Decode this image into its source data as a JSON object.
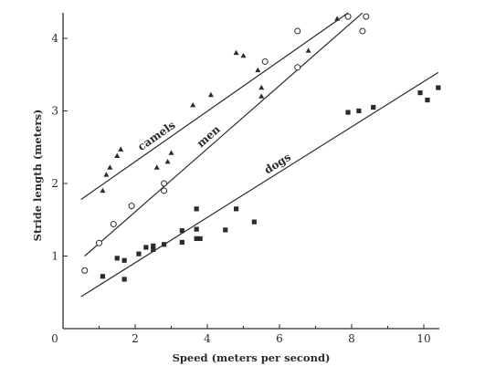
{
  "chart_data": {
    "type": "scatter",
    "xlabel": "Speed (meters per second)",
    "ylabel": "Stride length (meters)",
    "xlim": [
      0,
      10.5
    ],
    "ylim": [
      0,
      4.35
    ],
    "xticks": [
      "0",
      "2",
      "4",
      "6",
      "8",
      "10"
    ],
    "yticks": [
      "1",
      "2",
      "3",
      "4"
    ],
    "grid": false,
    "series": [
      {
        "name": "camels",
        "marker": "triangle",
        "color": "#2b2b2b",
        "points": [
          [
            1.1,
            1.9
          ],
          [
            1.2,
            2.12
          ],
          [
            1.3,
            2.22
          ],
          [
            1.5,
            2.38
          ],
          [
            1.6,
            2.47
          ],
          [
            2.6,
            2.22
          ],
          [
            2.9,
            2.3
          ],
          [
            3.0,
            2.42
          ],
          [
            3.6,
            3.08
          ],
          [
            4.1,
            3.22
          ],
          [
            4.8,
            3.8
          ],
          [
            5.0,
            3.76
          ],
          [
            5.4,
            3.56
          ],
          [
            5.5,
            3.2
          ],
          [
            5.5,
            3.32
          ],
          [
            6.8,
            3.83
          ],
          [
            7.6,
            4.27
          ]
        ],
        "fit": [
          [
            0.5,
            1.78
          ],
          [
            7.9,
            4.35
          ]
        ]
      },
      {
        "name": "men",
        "marker": "circle-open",
        "color": "#2b2b2b",
        "points": [
          [
            0.6,
            0.8
          ],
          [
            1.0,
            1.18
          ],
          [
            1.4,
            1.44
          ],
          [
            1.9,
            1.69
          ],
          [
            2.8,
            1.9
          ],
          [
            2.8,
            2.0
          ],
          [
            5.6,
            3.68
          ],
          [
            6.5,
            3.6
          ],
          [
            6.5,
            4.1
          ],
          [
            7.9,
            4.3
          ],
          [
            8.3,
            4.1
          ],
          [
            8.4,
            4.3
          ]
        ],
        "fit": [
          [
            0.6,
            1.0
          ],
          [
            8.3,
            4.35
          ]
        ]
      },
      {
        "name": "dogs",
        "marker": "square",
        "color": "#2b2b2b",
        "points": [
          [
            1.1,
            0.72
          ],
          [
            1.5,
            0.97
          ],
          [
            1.7,
            0.94
          ],
          [
            1.7,
            0.68
          ],
          [
            2.1,
            1.03
          ],
          [
            2.3,
            1.12
          ],
          [
            2.5,
            1.14
          ],
          [
            2.5,
            1.09
          ],
          [
            2.8,
            1.16
          ],
          [
            3.3,
            1.19
          ],
          [
            3.3,
            1.35
          ],
          [
            3.7,
            1.24
          ],
          [
            3.7,
            1.37
          ],
          [
            3.7,
            1.65
          ],
          [
            3.8,
            1.24
          ],
          [
            4.5,
            1.36
          ],
          [
            4.8,
            1.65
          ],
          [
            5.3,
            1.47
          ],
          [
            7.9,
            2.98
          ],
          [
            8.2,
            3.0
          ],
          [
            8.6,
            3.05
          ],
          [
            9.9,
            3.25
          ],
          [
            10.1,
            3.15
          ],
          [
            10.4,
            3.32
          ]
        ],
        "fit": [
          [
            0.5,
            0.44
          ],
          [
            10.4,
            3.53
          ]
        ]
      }
    ]
  }
}
